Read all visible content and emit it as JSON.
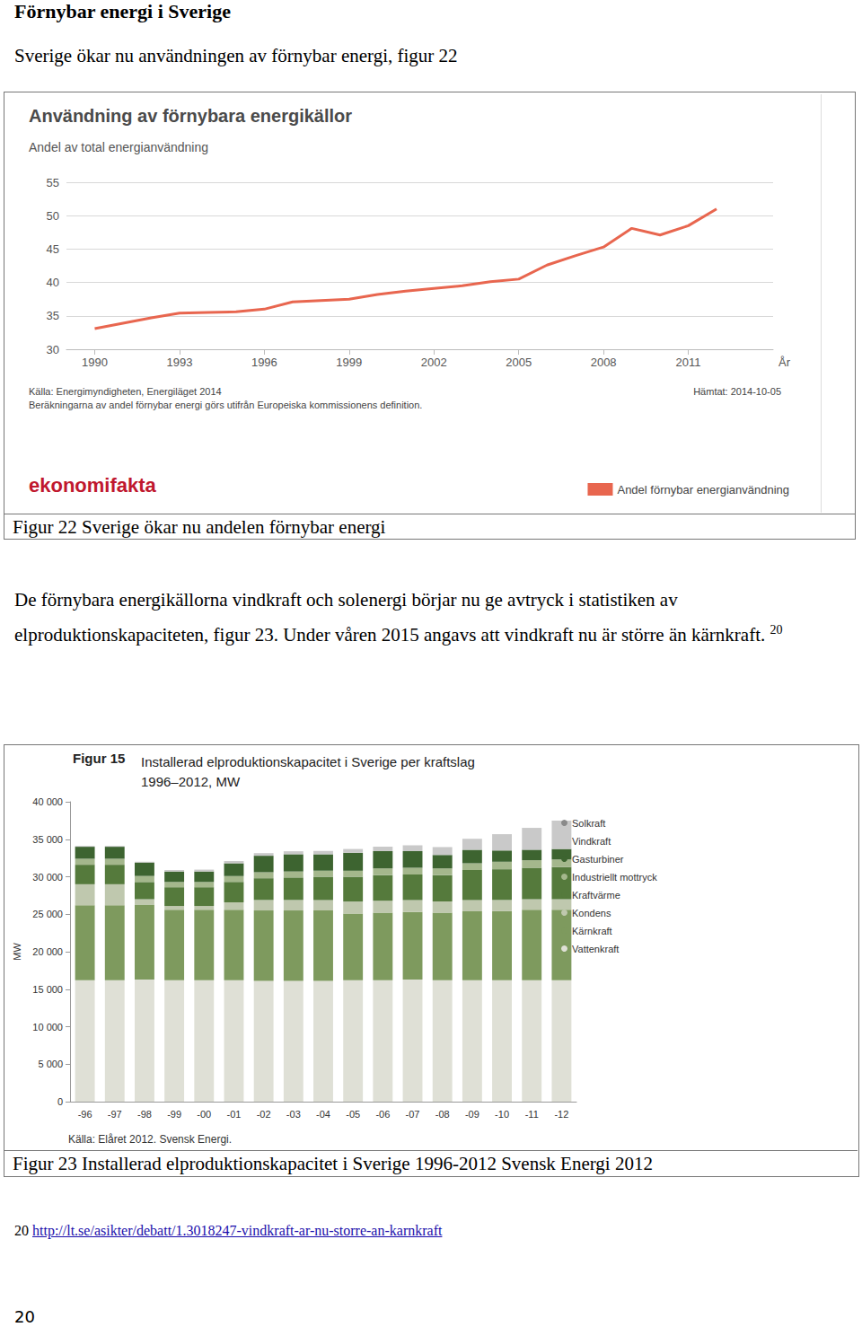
{
  "heading": "Förnybar energi i Sverige",
  "intro": "Sverige ökar nu användningen av förnybar energi, figur 22",
  "figure22_caption": "Figur 22 Sverige ökar nu andelen förnybar energi",
  "paragraph": {
    "text": "De förnybara energikällorna vindkraft och solenergi börjar nu ge avtryck i statistiken av elproduktionskapaciteten, figur 23. Under våren 2015 angavs att vindkraft nu är större än kärnkraft.",
    "footnote_ref": "20"
  },
  "figure23_caption": "Figur 23 Installerad elproduktionskapacitet i Sverige 1996-2012 Svensk Energi 2012",
  "footnote": {
    "number": "20",
    "url": "http://lt.se/asikter/debatt/1.3018247-vindkraft-ar-nu-storre-an-karnkraft"
  },
  "page_number": "20",
  "chart_data": [
    {
      "type": "line",
      "title": "Användning av förnybara energikällor",
      "subtitle": "Andel av total energianvändning",
      "xlabel": "År",
      "x": [
        1990,
        1991,
        1992,
        1993,
        1994,
        1995,
        1996,
        1997,
        1998,
        1999,
        2000,
        2001,
        2002,
        2003,
        2004,
        2005,
        2006,
        2007,
        2008,
        2009,
        2010,
        2011,
        2012
      ],
      "series": [
        {
          "name": "Andel förnybar energianvändning",
          "color": "#e8664f",
          "values": [
            33.1,
            33.9,
            34.7,
            35.4,
            35.5,
            35.6,
            36.0,
            37.1,
            37.3,
            37.5,
            38.2,
            38.7,
            39.1,
            39.5,
            40.1,
            40.5,
            42.6,
            44.0,
            45.3,
            48.1,
            47.1,
            48.5,
            51.0
          ]
        }
      ],
      "xlim": [
        1989,
        2014
      ],
      "xticks": [
        1990,
        1993,
        1996,
        1999,
        2002,
        2005,
        2008,
        2011
      ],
      "ylim": [
        30,
        55
      ],
      "yticks": [
        30,
        35,
        40,
        45,
        50,
        55
      ],
      "grid": true,
      "legend": "bottom-right",
      "source": "Källa: Energimyndigheten, Energiläget 2014",
      "note": "Beräkningarna av andel förnybar energi görs utifrån Europeiska kommissionens definition.",
      "retrieved": "Hämtat: 2014-10-05",
      "logo": "ekonomifakta"
    },
    {
      "type": "bar",
      "stacked": true,
      "title": "Figur 15",
      "subtitle": "Installerad elproduktionskapacitet i Sverige per kraftslag\n1996–2012, MW",
      "ylabel": "MW",
      "categories": [
        "-96",
        "-97",
        "-98",
        "-99",
        "-00",
        "-01",
        "-02",
        "-03",
        "-04",
        "-05",
        "-06",
        "-07",
        "-08",
        "-09",
        "-10",
        "-11",
        "-12"
      ],
      "series": [
        {
          "name": "Vattenkraft",
          "color": "#dfe0d6",
          "values": [
            16200,
            16200,
            16300,
            16200,
            16200,
            16200,
            16100,
            16100,
            16100,
            16200,
            16200,
            16300,
            16200,
            16200,
            16200,
            16200,
            16200
          ]
        },
        {
          "name": "Kärnkraft",
          "color": "#7e9a5e",
          "values": [
            10000,
            10000,
            10000,
            9400,
            9400,
            9400,
            9400,
            9400,
            9400,
            8900,
            9000,
            9000,
            9000,
            9200,
            9200,
            9400,
            9400
          ]
        },
        {
          "name": "Kondens",
          "color": "#bfc8ae",
          "values": [
            2800,
            2800,
            700,
            500,
            500,
            1000,
            1400,
            1400,
            1400,
            1600,
            1600,
            1600,
            1500,
            1500,
            1500,
            1400,
            1400
          ]
        },
        {
          "name": "Kraftvärme",
          "color": "#557a3c",
          "values": [
            2600,
            2600,
            2300,
            2500,
            2500,
            2700,
            2900,
            3000,
            3100,
            3300,
            3400,
            3400,
            3500,
            4000,
            4100,
            4200,
            4300
          ]
        },
        {
          "name": "Industriellt mottryck",
          "color": "#a4b78c",
          "values": [
            800,
            800,
            800,
            700,
            700,
            800,
            800,
            800,
            800,
            800,
            900,
            900,
            900,
            900,
            1000,
            1000,
            1000
          ]
        },
        {
          "name": "Gasturbiner",
          "color": "#3d6430",
          "values": [
            1600,
            1600,
            1800,
            1400,
            1400,
            1700,
            2200,
            2300,
            2200,
            2400,
            2300,
            2200,
            1800,
            1800,
            1500,
            1400,
            1400
          ]
        },
        {
          "name": "Vindkraft",
          "color": "#c9c9c9",
          "values": [
            100,
            100,
            100,
            200,
            250,
            300,
            350,
            400,
            450,
            500,
            600,
            800,
            1000,
            1450,
            2160,
            2900,
            3750
          ]
        },
        {
          "name": "Solkraft",
          "color": "#8a8a8a",
          "values": [
            0,
            0,
            0,
            0,
            0,
            0,
            0,
            0,
            0,
            0,
            5,
            6,
            8,
            9,
            11,
            15,
            24
          ]
        }
      ],
      "ylim": [
        0,
        40000
      ],
      "yticks": [
        0,
        {
          "value": 5000,
          "label": "5 000"
        },
        {
          "value": 10000,
          "label": "10 000"
        },
        {
          "value": 15000,
          "label": "15 000"
        },
        {
          "value": 20000,
          "label": "20 000"
        },
        {
          "value": 25000,
          "label": "25 000"
        },
        {
          "value": 30000,
          "label": "30 000"
        },
        {
          "value": 35000,
          "label": "35 000"
        },
        {
          "value": 40000,
          "label": "40 000"
        }
      ],
      "grid": false,
      "legend": "right",
      "source": "Källa: Elåret 2012. Svensk Energi."
    }
  ]
}
